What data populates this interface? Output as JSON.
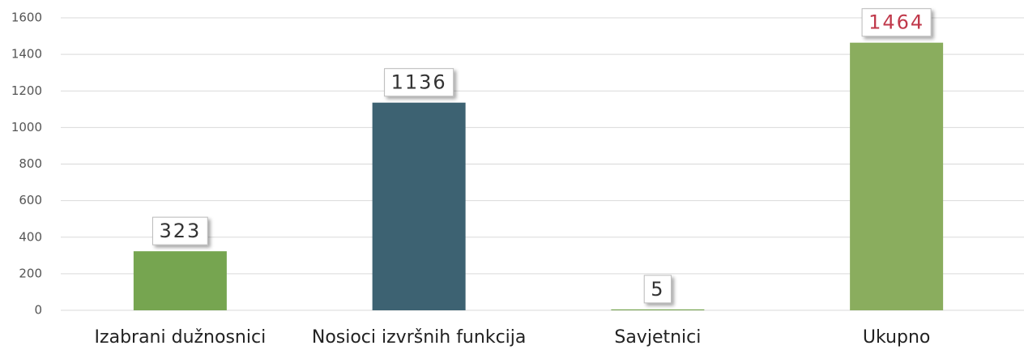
{
  "chart_data": {
    "type": "bar",
    "categories": [
      "Izabrani dužnosnici",
      "Nosioci izvršnih funkcija",
      "Savjetnici",
      "Ukupno"
    ],
    "values": [
      323,
      1136,
      5,
      1464
    ],
    "colors": [
      "#76a550",
      "#3d6272",
      "#76a550",
      "#8aad5e"
    ],
    "value_label_colors": [
      "#333333",
      "#333333",
      "#333333",
      "#c0394b"
    ],
    "ylim": [
      0,
      1600
    ],
    "yticks": [
      0,
      200,
      400,
      600,
      800,
      1000,
      1200,
      1400,
      1600
    ],
    "grid": true
  }
}
